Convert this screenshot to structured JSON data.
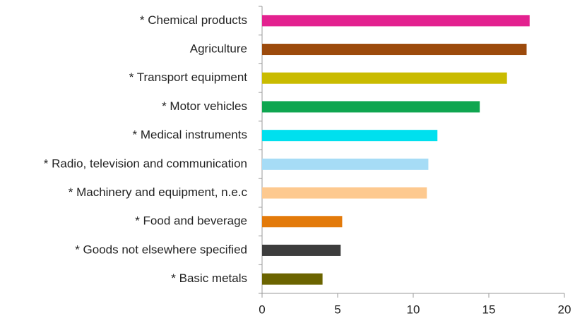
{
  "chart_data": {
    "type": "barh",
    "categories": [
      "* Chemical products",
      "Agriculture",
      "* Transport equipment",
      "* Motor vehicles",
      "* Medical instruments",
      "* Radio, television and communication",
      "* Machinery and equipment, n.e.c",
      "* Food and beverage",
      "* Goods not elsewhere specified",
      "* Basic metals"
    ],
    "values": [
      17.7,
      17.5,
      16.2,
      14.4,
      11.6,
      11.0,
      10.9,
      5.3,
      5.2,
      4.0
    ],
    "colors": [
      "#e3218f",
      "#9c4a0c",
      "#c9bb00",
      "#0fa650",
      "#00e0ee",
      "#a6dcf6",
      "#fdc98f",
      "#e37a0a",
      "#3d3d3d",
      "#6b6400"
    ],
    "xlim": [
      0,
      20
    ],
    "xticks": [
      0,
      5,
      10,
      15,
      20
    ],
    "grid": false
  }
}
